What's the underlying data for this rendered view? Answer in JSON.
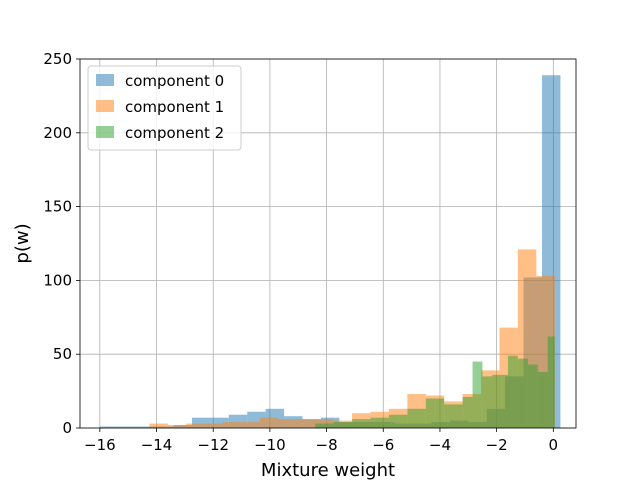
{
  "chart_data": {
    "type": "bar",
    "subtype": "overlapping-histogram",
    "title": "",
    "xlabel": "Mixture weight",
    "ylabel": "p(w)",
    "xlim": [
      -16.7,
      0.8
    ],
    "ylim": [
      0,
      250
    ],
    "xticks": [
      -16,
      -14,
      -12,
      -10,
      -8,
      -6,
      -4,
      -2,
      0
    ],
    "xtick_labels": [
      "−16",
      "−14",
      "−12",
      "−10",
      "−8",
      "−6",
      "−4",
      "−2",
      "0"
    ],
    "yticks": [
      0,
      50,
      100,
      150,
      200,
      250
    ],
    "ytick_labels": [
      "0",
      "50",
      "100",
      "150",
      "200",
      "250"
    ],
    "grid": true,
    "legend_position": "top-left",
    "bar_opacity": 0.5,
    "series": [
      {
        "name": "component 0",
        "color": "#1f77b4",
        "bins": [
          [
            -16.0,
            -15.35,
            1
          ],
          [
            -15.35,
            -14.7,
            1
          ],
          [
            -14.7,
            -14.05,
            1
          ],
          [
            -14.05,
            -13.4,
            1
          ],
          [
            -13.4,
            -12.75,
            2
          ],
          [
            -12.75,
            -12.1,
            7
          ],
          [
            -12.1,
            -11.45,
            7
          ],
          [
            -11.45,
            -10.8,
            9
          ],
          [
            -10.8,
            -10.15,
            11
          ],
          [
            -10.15,
            -9.5,
            13
          ],
          [
            -9.5,
            -8.85,
            8
          ],
          [
            -8.85,
            -8.2,
            6
          ],
          [
            -8.2,
            -7.55,
            7
          ],
          [
            -7.55,
            -6.9,
            4
          ],
          [
            -6.9,
            -6.25,
            4
          ],
          [
            -6.25,
            -5.6,
            4
          ],
          [
            -5.6,
            -4.95,
            3
          ],
          [
            -4.95,
            -4.3,
            3
          ],
          [
            -4.3,
            -3.65,
            4
          ],
          [
            -3.65,
            -3.0,
            5
          ],
          [
            -3.0,
            -2.35,
            4
          ],
          [
            -2.35,
            -1.7,
            13
          ],
          [
            -1.7,
            -1.05,
            35
          ],
          [
            -1.05,
            -0.4,
            102
          ],
          [
            -0.4,
            0.25,
            239
          ]
        ]
      },
      {
        "name": "component 1",
        "color": "#ff7f0e",
        "bins": [
          [
            -14.9,
            -14.25,
            0
          ],
          [
            -14.25,
            -13.6,
            3
          ],
          [
            -13.6,
            -12.95,
            2
          ],
          [
            -12.95,
            -12.3,
            3
          ],
          [
            -12.3,
            -11.65,
            3
          ],
          [
            -11.65,
            -11.0,
            4
          ],
          [
            -11.0,
            -10.35,
            4
          ],
          [
            -10.35,
            -9.7,
            7
          ],
          [
            -9.7,
            -9.05,
            6
          ],
          [
            -9.05,
            -8.4,
            6
          ],
          [
            -8.4,
            -7.75,
            6
          ],
          [
            -7.75,
            -7.1,
            5
          ],
          [
            -7.1,
            -6.45,
            10
          ],
          [
            -6.45,
            -5.8,
            11
          ],
          [
            -5.8,
            -5.15,
            13
          ],
          [
            -5.15,
            -4.5,
            23
          ],
          [
            -4.5,
            -3.85,
            22
          ],
          [
            -3.85,
            -3.2,
            18
          ],
          [
            -3.2,
            -2.55,
            23
          ],
          [
            -2.55,
            -1.9,
            39
          ],
          [
            -1.9,
            -1.25,
            68
          ],
          [
            -1.25,
            -0.6,
            121
          ],
          [
            -0.6,
            0.05,
            103
          ]
        ]
      },
      {
        "name": "component 2",
        "color": "#2ca02c",
        "bins": [
          [
            -8.4,
            -7.75,
            3
          ],
          [
            -7.75,
            -7.1,
            4
          ],
          [
            -7.1,
            -6.45,
            6
          ],
          [
            -6.45,
            -5.8,
            7
          ],
          [
            -5.8,
            -5.15,
            9
          ],
          [
            -5.15,
            -4.5,
            13
          ],
          [
            -4.5,
            -3.85,
            20
          ],
          [
            -3.85,
            -3.2,
            16
          ],
          [
            -3.2,
            -2.85,
            21
          ],
          [
            -2.85,
            -2.5,
            45
          ],
          [
            -2.5,
            -2.15,
            35
          ],
          [
            -2.15,
            -1.6,
            36
          ],
          [
            -1.6,
            -1.25,
            49
          ],
          [
            -1.25,
            -0.9,
            47
          ],
          [
            -0.9,
            -0.55,
            43
          ],
          [
            -0.55,
            -0.2,
            38
          ],
          [
            -0.2,
            0.05,
            62
          ]
        ]
      }
    ]
  }
}
